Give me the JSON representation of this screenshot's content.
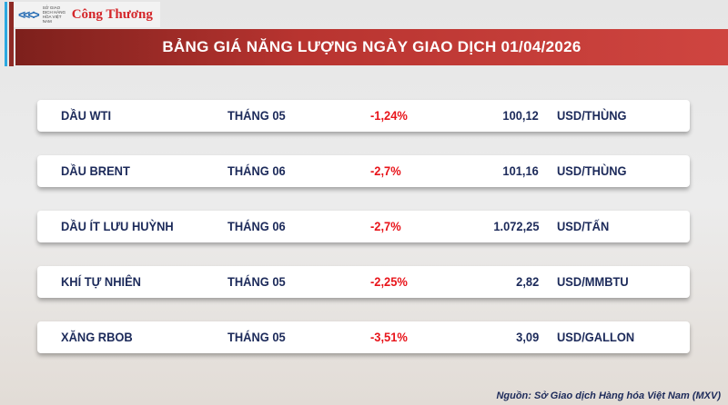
{
  "logo": {
    "mxv_text": "SỞ GIAO DỊCH HÀNG HÓA VIỆT NAM",
    "brand": "Công Thương"
  },
  "title": "BẢNG GIÁ NĂNG LƯỢNG NGÀY GIAO DỊCH 01/04/2026",
  "rows": [
    {
      "name": "DẦU WTI",
      "month": "THÁNG 05",
      "change": "-1,24%",
      "price": "100,12",
      "unit": "USD/THÙNG"
    },
    {
      "name": "DẦU BRENT",
      "month": "THÁNG 06",
      "change": "-2,7%",
      "price": "101,16",
      "unit": "USD/THÙNG"
    },
    {
      "name": "DẦU ÍT LƯU HUỲNH",
      "month": "THÁNG 06",
      "change": "-2,7%",
      "price": "1.072,25",
      "unit": "USD/TẤN"
    },
    {
      "name": "KHÍ TỰ NHIÊN",
      "month": "THÁNG 05",
      "change": "-2,25%",
      "price": "2,82",
      "unit": "USD/MMBTU"
    },
    {
      "name": "XĂNG RBOB",
      "month": "THÁNG 05",
      "change": "-3,51%",
      "price": "3,09",
      "unit": "USD/GALLON"
    }
  ],
  "source": "Nguồn: Sở Giao dịch Hàng hóa Việt Nam (MXV)",
  "colors": {
    "banner": "#b83430",
    "negative": "#e8141a",
    "text": "#1c2a5a",
    "accent_blue": "#2aa8e0"
  }
}
